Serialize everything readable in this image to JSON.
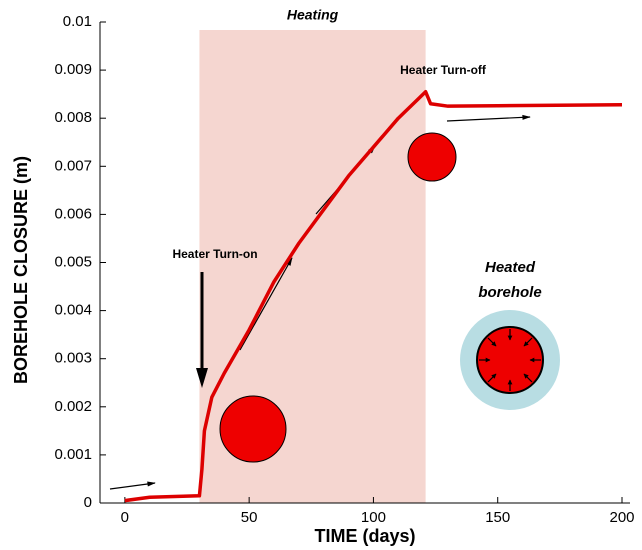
{
  "chart_data": {
    "type": "line",
    "x_label": "TIME (days)",
    "y_label": "BOREHOLE CLOSURE (m)",
    "x": [
      0,
      10,
      30,
      31,
      32,
      35,
      40,
      50,
      60,
      70,
      80,
      90,
      100,
      110,
      118,
      121,
      123,
      130,
      150,
      200
    ],
    "series": [
      {
        "color": "#dd0000",
        "values": [
          5e-05,
          0.00012,
          0.00015,
          0.0007,
          0.0015,
          0.0022,
          0.0027,
          0.0036,
          0.0046,
          0.0054,
          0.0061,
          0.0068,
          0.0074,
          0.008,
          0.0084,
          0.00855,
          0.0083,
          0.00825,
          0.00826,
          0.00828
        ]
      }
    ],
    "shaded_region": {
      "label": "Heating",
      "x": [
        30,
        121
      ],
      "color": "#f5d6d0"
    },
    "annotations": {
      "turn_on": "Heater Turn-on",
      "turn_off": "Heater Turn-off",
      "borehole": [
        "Heated",
        "borehole"
      ]
    },
    "xlim": [
      -10,
      200
    ],
    "xticks": [
      0,
      50,
      100,
      150,
      200
    ],
    "ylim": [
      0,
      0.01
    ],
    "yticks": [
      0,
      0.001,
      0.002,
      0.003,
      0.004,
      0.005,
      0.006,
      0.007,
      0.008,
      0.009,
      0.01
    ]
  }
}
